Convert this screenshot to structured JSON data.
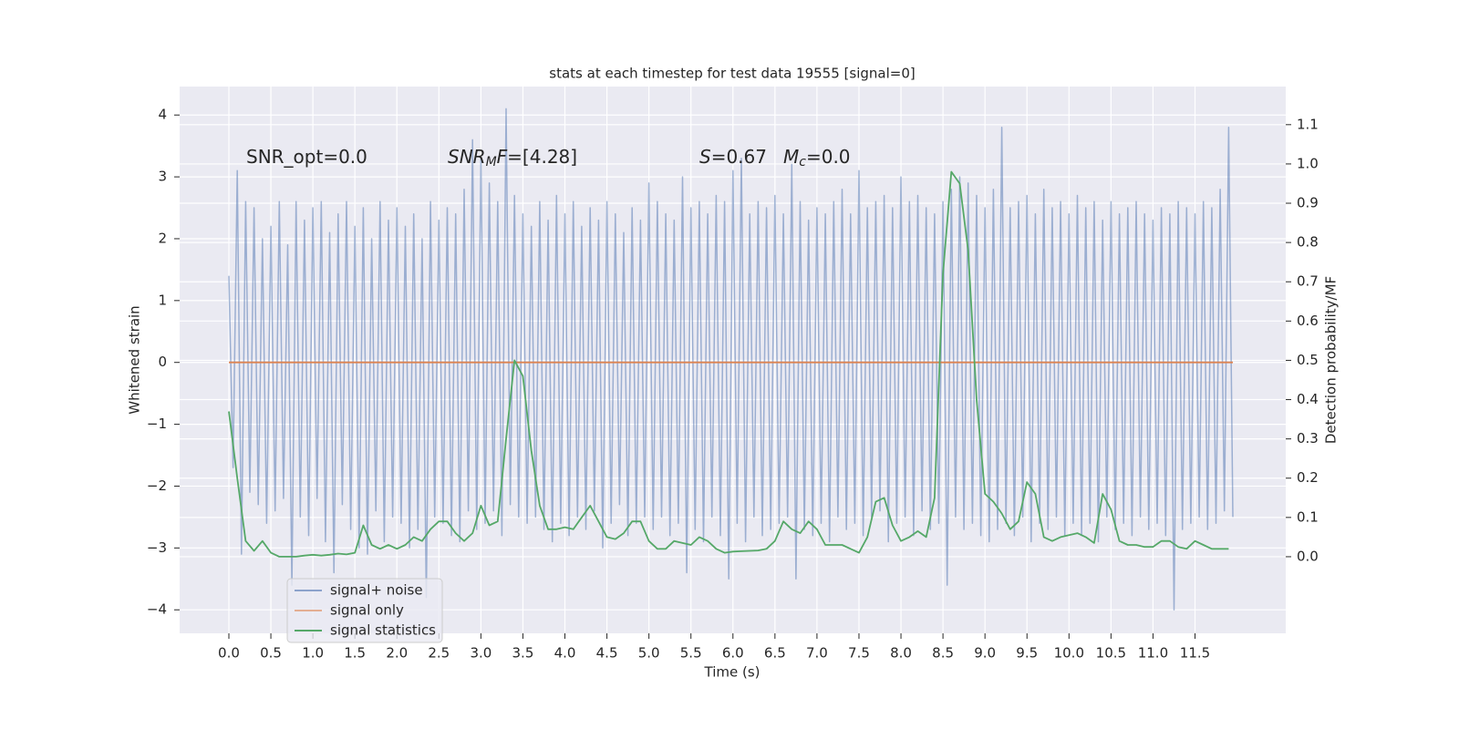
{
  "chart_data": {
    "type": "line",
    "title": "stats at each timestep for test data 19555 [signal=0]",
    "xlabel": "Time (s)",
    "ylabel": "Whitened strain",
    "y2label": "Detection probability/MF",
    "annotations": [
      [
        "SNR_opt=0.0"
      ],
      [
        "SNR",
        "M",
        "F",
        "=[4.28]"
      ],
      [
        "S",
        "=0.67"
      ],
      [
        "M",
        "c",
        "=0.0"
      ]
    ],
    "grid": true,
    "legend_loc": "lower left",
    "background": "#eaeaf2",
    "xlim": [
      -0.586,
      12.58
    ],
    "ylim": [
      -4.38,
      4.46
    ],
    "y2lim": [
      -0.195,
      1.197
    ],
    "xticks": [
      {
        "value": 0,
        "label": "0.0"
      },
      0.5,
      {
        "value": 1,
        "label": "1.0"
      },
      1.5,
      {
        "value": 2,
        "label": "2.0"
      },
      2.5,
      {
        "value": 3,
        "label": "3.0"
      },
      3.5,
      {
        "value": 4,
        "label": "4.0"
      },
      4.5,
      {
        "value": 5,
        "label": "5.0"
      },
      5.5,
      {
        "value": 6,
        "label": "6.0"
      },
      6.5,
      {
        "value": 7,
        "label": "7.0"
      },
      7.5,
      {
        "value": 8,
        "label": "8.0"
      },
      8.5,
      {
        "value": 9,
        "label": "9.0"
      },
      9.5,
      {
        "value": 10,
        "label": "10.0"
      },
      10.5,
      {
        "value": 11,
        "label": "11.0"
      },
      11.5
    ],
    "yticks": [
      {
        "value": -4,
        "label": "−4"
      },
      {
        "value": -3,
        "label": "−3"
      },
      {
        "value": -2,
        "label": "−2"
      },
      {
        "value": -1,
        "label": "−1"
      },
      0,
      1,
      2,
      3,
      4
    ],
    "y2ticks": [
      {
        "value": 0,
        "label": "0.0"
      },
      0.1,
      0.2,
      0.3,
      0.4,
      0.5,
      0.6,
      0.7,
      0.8,
      0.9,
      {
        "value": 1,
        "label": "1.0"
      },
      1.1
    ],
    "series": [
      {
        "name": "signal+ noise",
        "color": "#4c72b0",
        "x": [
          0,
          0.05,
          0.1,
          0.15,
          0.2,
          0.25,
          0.3,
          0.35,
          0.4,
          0.45,
          0.5,
          0.55,
          0.6,
          0.65,
          0.7,
          0.75,
          0.8,
          0.85,
          0.9,
          0.95,
          1,
          1.05,
          1.1,
          1.15,
          1.2,
          1.25,
          1.3,
          1.35,
          1.4,
          1.45,
          1.5,
          1.55,
          1.6,
          1.65,
          1.7,
          1.75,
          1.8,
          1.85,
          1.9,
          1.95,
          2,
          2.05,
          2.1,
          2.15,
          2.2,
          2.25,
          2.3,
          2.35,
          2.4,
          2.45,
          2.5,
          2.55,
          2.6,
          2.65,
          2.7,
          2.75,
          2.8,
          2.85,
          2.9,
          2.95,
          3,
          3.05,
          3.1,
          3.15,
          3.2,
          3.25,
          3.3,
          3.35,
          3.4,
          3.45,
          3.5,
          3.55,
          3.6,
          3.65,
          3.7,
          3.75,
          3.8,
          3.85,
          3.9,
          3.95,
          4,
          4.05,
          4.1,
          4.15,
          4.2,
          4.25,
          4.3,
          4.35,
          4.4,
          4.45,
          4.5,
          4.55,
          4.6,
          4.65,
          4.7,
          4.75,
          4.8,
          4.85,
          4.9,
          4.95,
          5,
          5.05,
          5.1,
          5.15,
          5.2,
          5.25,
          5.3,
          5.35,
          5.4,
          5.45,
          5.5,
          5.55,
          5.6,
          5.65,
          5.7,
          5.75,
          5.8,
          5.85,
          5.9,
          5.95,
          6,
          6.05,
          6.1,
          6.15,
          6.2,
          6.25,
          6.3,
          6.35,
          6.4,
          6.45,
          6.5,
          6.55,
          6.6,
          6.65,
          6.7,
          6.75,
          6.8,
          6.85,
          6.9,
          6.95,
          7,
          7.05,
          7.1,
          7.15,
          7.2,
          7.25,
          7.3,
          7.35,
          7.4,
          7.45,
          7.5,
          7.55,
          7.6,
          7.65,
          7.7,
          7.75,
          7.8,
          7.85,
          7.9,
          7.95,
          8,
          8.05,
          8.1,
          8.15,
          8.2,
          8.25,
          8.3,
          8.35,
          8.4,
          8.45,
          8.5,
          8.55,
          8.6,
          8.65,
          8.7,
          8.75,
          8.8,
          8.85,
          8.9,
          8.95,
          9,
          9.05,
          9.1,
          9.15,
          9.2,
          9.25,
          9.3,
          9.35,
          9.4,
          9.45,
          9.5,
          9.55,
          9.6,
          9.65,
          9.7,
          9.75,
          9.8,
          9.85,
          9.9,
          9.95,
          10,
          10.05,
          10.1,
          10.15,
          10.2,
          10.25,
          10.3,
          10.35,
          10.4,
          10.45,
          10.5,
          10.55,
          10.6,
          10.65,
          10.7,
          10.75,
          10.8,
          10.85,
          10.9,
          10.95,
          11,
          11.05,
          11.1,
          11.15,
          11.2,
          11.25,
          11.3,
          11.35,
          11.4,
          11.45,
          11.5,
          11.55,
          11.6,
          11.65,
          11.7,
          11.75,
          11.8,
          11.85,
          11.9,
          11.95
        ],
        "values": [
          1.4,
          -1.7,
          3.1,
          -3.1,
          2.6,
          -2.1,
          2.5,
          -2.3,
          2.0,
          -2.6,
          2.2,
          -2.4,
          2.6,
          -2.2,
          1.9,
          -3.6,
          2.6,
          -2.5,
          2.3,
          -2.8,
          2.5,
          -2.2,
          2.6,
          -2.9,
          2.1,
          -3.4,
          2.4,
          -2.3,
          2.6,
          -2.7,
          2.2,
          -3.0,
          2.5,
          -3.1,
          2.0,
          -2.4,
          2.6,
          -2.9,
          2.3,
          -2.5,
          2.5,
          -2.6,
          2.2,
          -3.0,
          2.4,
          -2.7,
          2.0,
          -3.8,
          2.6,
          -2.5,
          2.3,
          -2.6,
          2.5,
          -2.8,
          2.4,
          -2.9,
          2.8,
          -2.4,
          3.6,
          -2.7,
          3.3,
          -2.6,
          2.9,
          -2.4,
          2.6,
          -2.8,
          4.1,
          -2.3,
          2.7,
          -2.5,
          2.4,
          -2.6,
          2.2,
          -2.5,
          2.6,
          -2.7,
          2.3,
          -2.9,
          2.7,
          -2.6,
          2.4,
          -2.8,
          2.6,
          -2.5,
          2.2,
          -2.7,
          2.5,
          -2.4,
          2.3,
          -3.0,
          2.6,
          -2.6,
          2.4,
          -2.3,
          2.1,
          -2.8,
          2.5,
          -2.6,
          2.3,
          -2.5,
          2.9,
          -2.7,
          2.6,
          -2.5,
          2.4,
          -2.8,
          2.3,
          -2.6,
          3.0,
          -3.4,
          2.5,
          -2.7,
          2.6,
          -2.9,
          2.4,
          -2.5,
          2.7,
          -2.8,
          2.6,
          -3.5,
          3.1,
          -2.6,
          3.3,
          -2.9,
          2.4,
          -2.5,
          2.6,
          -2.8,
          2.5,
          -2.7,
          2.7,
          -2.6,
          2.4,
          -2.5,
          3.2,
          -3.5,
          2.6,
          -2.7,
          2.3,
          -2.8,
          2.5,
          -2.6,
          2.4,
          -2.9,
          2.6,
          -2.5,
          2.8,
          -2.7,
          2.4,
          -2.6,
          3.1,
          -2.8,
          2.5,
          -2.5,
          2.6,
          -2.4,
          2.7,
          -2.9,
          2.5,
          -2.6,
          3.0,
          -2.5,
          2.6,
          -2.8,
          2.7,
          -2.4,
          2.5,
          -2.7,
          2.4,
          -2.6,
          2.6,
          -3.6,
          2.8,
          -2.5,
          3.0,
          -2.7,
          2.9,
          -2.6,
          2.7,
          -2.8,
          2.5,
          -2.9,
          2.8,
          -2.7,
          3.8,
          -2.6,
          2.5,
          -2.8,
          2.6,
          -2.5,
          2.7,
          -2.9,
          2.4,
          -2.6,
          2.8,
          -2.7,
          2.5,
          -2.5,
          2.6,
          -2.8,
          2.4,
          -2.6,
          2.7,
          -2.8,
          2.5,
          -2.6,
          2.6,
          -2.9,
          2.3,
          -2.5,
          2.6,
          -2.7,
          2.4,
          -2.6,
          2.5,
          -2.8,
          2.6,
          -2.5,
          2.4,
          -2.7,
          2.3,
          -2.6,
          2.5,
          -2.8,
          2.4,
          -4.0,
          2.6,
          -2.7,
          2.5,
          -2.6,
          2.4,
          -2.5,
          2.6,
          -2.7,
          2.5,
          -2.6,
          2.8,
          -2.4,
          3.8,
          -2.5
        ]
      },
      {
        "name": "signal only",
        "color": "#dd8452",
        "x": [
          0,
          11.95
        ],
        "values": [
          0,
          0
        ]
      },
      {
        "name": "signal statistics",
        "color": "#55a868",
        "axis": "y2",
        "x": [
          0,
          0.1,
          0.2,
          0.3,
          0.4,
          0.5,
          0.6,
          0.7,
          0.8,
          0.9,
          1,
          1.1,
          1.2,
          1.3,
          1.4,
          1.5,
          1.6,
          1.7,
          1.8,
          1.9,
          2,
          2.1,
          2.2,
          2.3,
          2.4,
          2.5,
          2.6,
          2.7,
          2.8,
          2.9,
          3,
          3.1,
          3.2,
          3.3,
          3.4,
          3.5,
          3.6,
          3.7,
          3.8,
          3.9,
          4,
          4.1,
          4.2,
          4.3,
          4.4,
          4.5,
          4.6,
          4.7,
          4.8,
          4.9,
          5,
          5.1,
          5.2,
          5.3,
          5.4,
          5.5,
          5.6,
          5.7,
          5.8,
          5.9,
          6,
          6.1,
          6.2,
          6.3,
          6.4,
          6.5,
          6.6,
          6.7,
          6.8,
          6.9,
          7,
          7.1,
          7.2,
          7.3,
          7.4,
          7.5,
          7.6,
          7.7,
          7.8,
          7.9,
          8,
          8.1,
          8.2,
          8.3,
          8.4,
          8.5,
          8.6,
          8.7,
          8.8,
          8.9,
          9,
          9.1,
          9.2,
          9.3,
          9.4,
          9.5,
          9.6,
          9.7,
          9.8,
          9.9,
          10,
          10.1,
          10.2,
          10.3,
          10.4,
          10.5,
          10.6,
          10.7,
          10.8,
          10.9,
          11,
          11.1,
          11.2,
          11.3,
          11.4,
          11.5,
          11.6,
          11.7,
          11.8,
          11.9
        ],
        "values": [
          0.37,
          0.2,
          0.04,
          0.015,
          0.04,
          0.01,
          0.0,
          0.0,
          0.0,
          0.003,
          0.005,
          0.003,
          0.005,
          0.008,
          0.006,
          0.01,
          0.08,
          0.03,
          0.02,
          0.03,
          0.02,
          0.03,
          0.05,
          0.04,
          0.07,
          0.09,
          0.09,
          0.06,
          0.04,
          0.06,
          0.13,
          0.08,
          0.09,
          0.3,
          0.5,
          0.46,
          0.27,
          0.13,
          0.07,
          0.07,
          0.075,
          0.07,
          0.1,
          0.13,
          0.09,
          0.05,
          0.045,
          0.06,
          0.09,
          0.09,
          0.04,
          0.02,
          0.02,
          0.04,
          0.035,
          0.03,
          0.05,
          0.04,
          0.02,
          0.01,
          0.013,
          0.014,
          0.015,
          0.016,
          0.02,
          0.04,
          0.09,
          0.07,
          0.06,
          0.09,
          0.07,
          0.03,
          0.03,
          0.03,
          0.02,
          0.01,
          0.05,
          0.14,
          0.15,
          0.08,
          0.04,
          0.05,
          0.065,
          0.05,
          0.15,
          0.72,
          0.98,
          0.95,
          0.78,
          0.4,
          0.16,
          0.14,
          0.11,
          0.07,
          0.09,
          0.19,
          0.16,
          0.05,
          0.04,
          0.05,
          0.055,
          0.06,
          0.05,
          0.035,
          0.16,
          0.12,
          0.04,
          0.03,
          0.03,
          0.025,
          0.025,
          0.04,
          0.04,
          0.025,
          0.02,
          0.04,
          0.03,
          0.02,
          0.02,
          0.02
        ]
      }
    ]
  }
}
